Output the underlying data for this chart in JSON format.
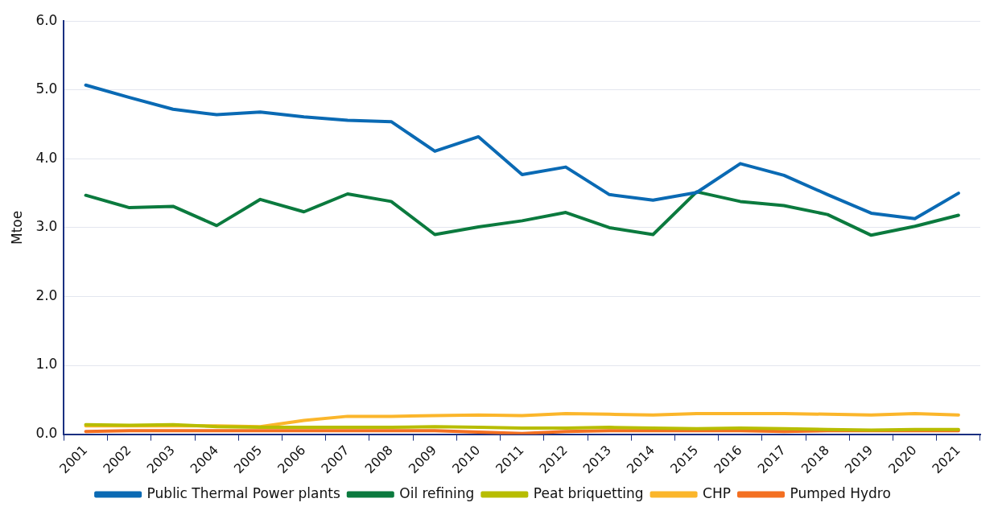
{
  "chart_data": {
    "type": "line",
    "ylabel": "Mtoe",
    "categories": [
      "2001",
      "2002",
      "2003",
      "2004",
      "2005",
      "2006",
      "2007",
      "2008",
      "2009",
      "2010",
      "2011",
      "2012",
      "2013",
      "2014",
      "2015",
      "2016",
      "2017",
      "2018",
      "2019",
      "2020",
      "2021"
    ],
    "series": [
      {
        "name": "Public Thermal Power plants",
        "color": "#0a6ab4",
        "values": [
          5.07,
          4.89,
          4.72,
          4.64,
          4.68,
          4.61,
          4.56,
          4.54,
          4.11,
          4.32,
          3.77,
          3.88,
          3.48,
          3.4,
          3.51,
          3.93,
          3.76,
          3.48,
          3.21,
          3.13,
          3.5
        ]
      },
      {
        "name": "Oil refining",
        "color": "#0b7a3e",
        "values": [
          3.47,
          3.29,
          3.31,
          3.03,
          3.41,
          3.23,
          3.49,
          3.38,
          2.9,
          3.01,
          3.1,
          3.22,
          3.0,
          2.9,
          3.52,
          3.38,
          3.32,
          3.19,
          2.89,
          3.02,
          3.18
        ]
      },
      {
        "name": "Peat briquetting",
        "color": "#b7bd00",
        "values": [
          0.14,
          0.13,
          0.14,
          0.11,
          0.1,
          0.1,
          0.1,
          0.1,
          0.11,
          0.1,
          0.09,
          0.09,
          0.1,
          0.09,
          0.08,
          0.09,
          0.08,
          0.07,
          0.06,
          0.07,
          0.07
        ]
      },
      {
        "name": "CHP",
        "color": "#fbb62b",
        "values": [
          0.12,
          0.12,
          0.12,
          0.12,
          0.11,
          0.2,
          0.26,
          0.26,
          0.27,
          0.28,
          0.27,
          0.3,
          0.29,
          0.28,
          0.3,
          0.3,
          0.3,
          0.29,
          0.28,
          0.3,
          0.28
        ]
      },
      {
        "name": "Pumped Hydro",
        "color": "#f36f21",
        "values": [
          0.04,
          0.05,
          0.05,
          0.05,
          0.05,
          0.05,
          0.05,
          0.05,
          0.05,
          0.03,
          0.01,
          0.04,
          0.05,
          0.05,
          0.05,
          0.05,
          0.04,
          0.05,
          0.05,
          0.05,
          0.05
        ]
      }
    ],
    "ylim": [
      0,
      6
    ],
    "yticks": [
      {
        "value": 0,
        "label": "0.0"
      },
      {
        "value": 1,
        "label": "1.0"
      },
      {
        "value": 2,
        "label": "2.0"
      },
      {
        "value": 3,
        "label": "3.0"
      },
      {
        "value": 4,
        "label": "4.0"
      },
      {
        "value": 5,
        "label": "5.0"
      },
      {
        "value": 6,
        "label": "6.0"
      }
    ],
    "grid": "y",
    "legend": "bottom",
    "marker": "none",
    "line_style": "solid"
  }
}
